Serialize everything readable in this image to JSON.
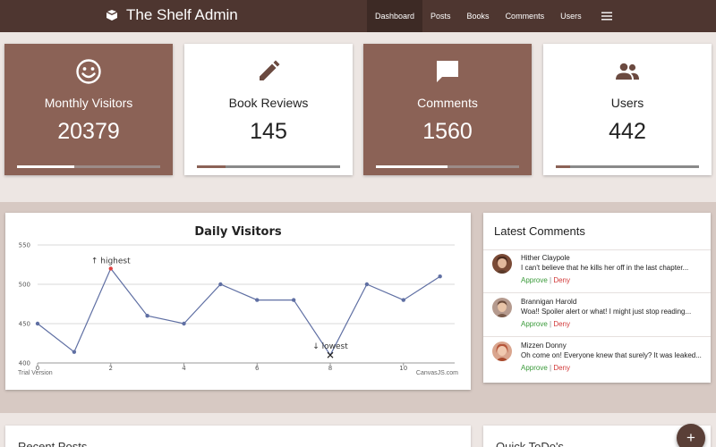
{
  "navbar": {
    "brand": "The Shelf Admin",
    "brand_icon": "book-icon",
    "links": [
      {
        "label": "Dashboard",
        "active": true
      },
      {
        "label": "Posts",
        "active": false
      },
      {
        "label": "Books",
        "active": false
      },
      {
        "label": "Comments",
        "active": false
      },
      {
        "label": "Users",
        "active": false
      }
    ],
    "menu_icon": "hamburger-menu-icon"
  },
  "stats": [
    {
      "label": "Monthly Visitors",
      "value": "20379",
      "icon": "smiley-face-icon",
      "progress": 0.4
    },
    {
      "label": "Book Reviews",
      "value": "145",
      "icon": "pencil-icon",
      "progress": 0.2
    },
    {
      "label": "Comments",
      "value": "1560",
      "icon": "chat-bubble-icon",
      "progress": 0.5
    },
    {
      "label": "Users",
      "value": "442",
      "icon": "people-icon",
      "progress": 0.1
    }
  ],
  "chart": {
    "trial_label": "Trial Version",
    "credit": "CanvasJS.com"
  },
  "chart_data": {
    "type": "line",
    "title": "Daily Visitors",
    "x": [
      0,
      1,
      2,
      3,
      4,
      5,
      6,
      7,
      8,
      9,
      10,
      11
    ],
    "values": [
      450,
      414,
      520,
      460,
      450,
      500,
      480,
      480,
      410,
      500,
      480,
      510
    ],
    "xlim": [
      0,
      11.4
    ],
    "ylim": [
      400,
      550
    ],
    "xticks": [
      0,
      2,
      4,
      6,
      8,
      10
    ],
    "yticks": [
      400,
      450,
      500,
      550
    ],
    "grid": true,
    "line_color": "#5f6fa3",
    "annotations": [
      {
        "x": 2,
        "y": 520,
        "label": "↑ highest",
        "marker_color": "#e04040"
      },
      {
        "x": 8,
        "y": 410,
        "label": "↓ lowest",
        "marker": "cross"
      }
    ]
  },
  "comments": {
    "title": "Latest Comments",
    "approve_label": "Approve",
    "deny_label": "Deny",
    "items": [
      {
        "name": "Hither Claypole",
        "text": "I can't believe that he kills her off in the last chapter...",
        "avatar_color": "#7a4a36"
      },
      {
        "name": "Brannigan Harold",
        "text": "Woa!! Spoiler alert or what! I might just stop reading...",
        "avatar_color": "#9b6a58"
      },
      {
        "name": "Mizzen Donny",
        "text": "Oh come on! Everyone knew that surely? It was leaked...",
        "avatar_color": "#b5553a"
      }
    ]
  },
  "bottom": {
    "recent_posts": "Recent Posts",
    "quick_todos": "Quick ToDo's"
  },
  "fab": {
    "label": "+",
    "icon": "plus-icon"
  },
  "colors": {
    "nav": "#4e3630",
    "accent": "#8b6256",
    "band": "#ede6e3",
    "page": "#d7c9c3"
  }
}
